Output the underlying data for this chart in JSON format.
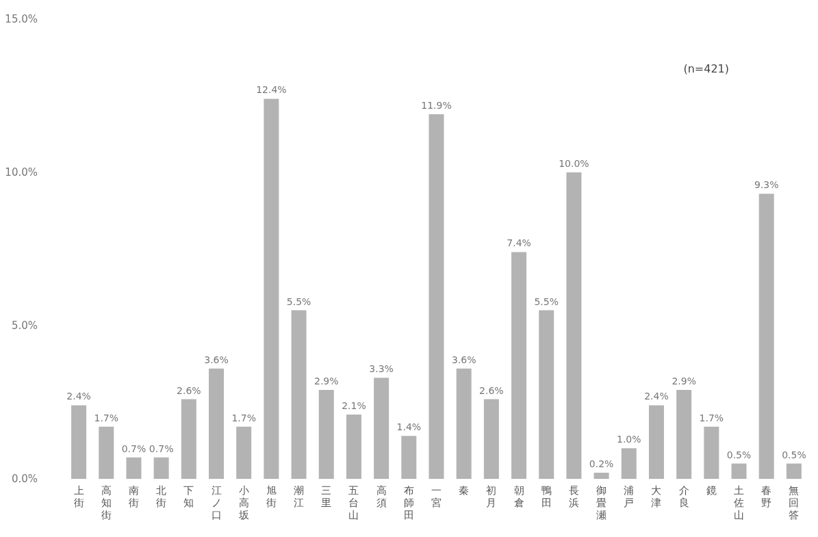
{
  "chart_data": {
    "type": "bar",
    "categories": [
      "上街",
      "高知街",
      "南街",
      "北街",
      "下知",
      "江ノ口",
      "小高坂",
      "旭街",
      "潮江",
      "三里",
      "五台山",
      "高須",
      "布師田",
      "一宮",
      "秦",
      "初月",
      "朝倉",
      "鴨田",
      "長浜",
      "御畳瀬",
      "浦戸",
      "大津",
      "介良",
      "鏡",
      "土佐山",
      "春野",
      "無回答"
    ],
    "values": [
      2.4,
      1.7,
      0.7,
      0.7,
      2.6,
      3.6,
      1.7,
      12.4,
      5.5,
      2.9,
      2.1,
      3.3,
      1.4,
      11.9,
      3.6,
      2.6,
      7.4,
      5.5,
      10.0,
      0.2,
      1.0,
      2.4,
      2.9,
      1.7,
      0.5,
      9.3,
      0.5
    ],
    "value_labels": [
      "2.4%",
      "1.7%",
      "0.7%",
      "0.7%",
      "2.6%",
      "3.6%",
      "1.7%",
      "12.4%",
      "5.5%",
      "2.9%",
      "2.1%",
      "3.3%",
      "1.4%",
      "11.9%",
      "3.6%",
      "2.6%",
      "7.4%",
      "5.5%",
      "10.0%",
      "0.2%",
      "1.0%",
      "2.4%",
      "2.9%",
      "1.7%",
      "0.5%",
      "9.3%",
      "0.5%"
    ],
    "color": "#b3b3b3",
    "ylim": [
      0,
      15
    ],
    "yticks": [
      {
        "value": 0,
        "label": "0.0%"
      },
      {
        "value": 5,
        "label": "5.0%"
      },
      {
        "value": 10,
        "label": "10.0%"
      },
      {
        "value": 15,
        "label": "15.0%"
      }
    ],
    "annotations": [
      "(n=421)"
    ]
  }
}
